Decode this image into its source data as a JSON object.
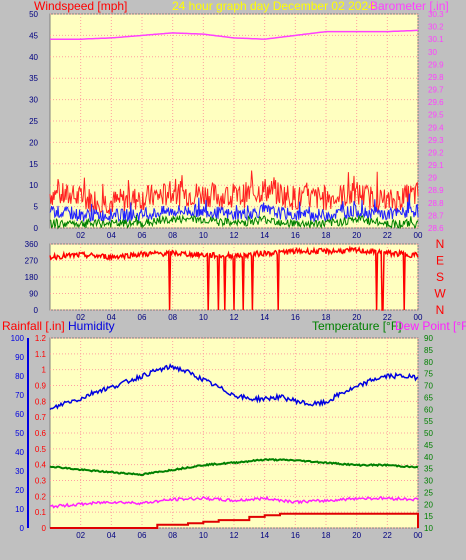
{
  "header": {
    "left_title": "Windspeed [mph]",
    "center_title": "24 hour graph day   December 02 2024",
    "right_title": "Barometer [.in]"
  },
  "bottom_header": {
    "rainfall": "Rainfall [.in]",
    "humidity": "Humidity",
    "temperature": "Temperature [°F]",
    "dewpoint": "Dew Point [°F]"
  },
  "colors": {
    "background": "#c0c0c0",
    "plot": "#ffffc0",
    "grid": "#ffa0a0",
    "wind_speed": "#ff2020",
    "wind_avg": "#2020ff",
    "wind_low": "#008000",
    "barometer": "#ff40ff",
    "direction": "#ff0000",
    "humidity": "#0000e0",
    "temperature": "#008000",
    "dewpoint": "#ff20ff",
    "rainfall": "#e00000",
    "title": "#ffff00",
    "left_title": "#ff0000"
  },
  "chart_data": [
    {
      "type": "line",
      "name": "wind-barometer",
      "x_ticks": [
        "02",
        "04",
        "06",
        "08",
        "10",
        "12",
        "14",
        "16",
        "18",
        "20",
        "22",
        "00"
      ],
      "left_axis": {
        "label": "Windspeed [mph]",
        "ticks": [
          0,
          5,
          10,
          15,
          20,
          25,
          30,
          35,
          40,
          45,
          50
        ],
        "range": [
          0,
          50
        ]
      },
      "right_axis": {
        "label": "Barometer [.in]",
        "ticks": [
          "28.6",
          "28.7",
          "28.8",
          "28.9",
          "29",
          "29.1",
          "29.2",
          "29.3",
          "29.4",
          "29.5",
          "29.6",
          "29.7",
          "29.8",
          "29.9",
          "30",
          "30.1",
          "30.2",
          "30.3"
        ],
        "range": [
          28.6,
          30.3
        ]
      },
      "barometer": {
        "x": [
          0,
          2,
          4,
          6,
          8,
          10,
          12,
          14,
          16,
          18,
          20,
          22,
          24
        ],
        "y": [
          30.1,
          30.1,
          30.11,
          30.13,
          30.15,
          30.14,
          30.11,
          30.1,
          30.13,
          30.16,
          30.16,
          30.16,
          30.17
        ]
      },
      "gust_band": {
        "x": [
          0,
          2,
          4,
          6,
          8,
          10,
          12,
          14,
          16,
          18,
          20,
          22,
          24
        ],
        "y": [
          8,
          7,
          6,
          7,
          8,
          8,
          7,
          9,
          7,
          7,
          8,
          6,
          8
        ]
      },
      "avg_band": {
        "x": [
          0,
          2,
          4,
          6,
          8,
          10,
          12,
          14,
          16,
          18,
          20,
          22,
          24
        ],
        "y": [
          4,
          3,
          3,
          3,
          4,
          4,
          3,
          4,
          3,
          3,
          4,
          3,
          4
        ]
      },
      "low_band": {
        "x": [
          0,
          2,
          4,
          6,
          8,
          10,
          12,
          14,
          16,
          18,
          20,
          22,
          24
        ],
        "y": [
          1,
          1,
          1,
          1,
          2,
          2,
          1,
          2,
          1,
          1,
          2,
          1,
          1
        ]
      }
    },
    {
      "type": "line",
      "name": "wind-direction",
      "x_ticks": [
        "02",
        "04",
        "06",
        "08",
        "10",
        "12",
        "14",
        "16",
        "18",
        "20",
        "22",
        "00"
      ],
      "left_axis": {
        "ticks": [
          0,
          90,
          180,
          270,
          360
        ],
        "range": [
          0,
          360
        ]
      },
      "right_axis": {
        "ticks": [
          "N",
          "W",
          "S",
          "E",
          "N"
        ]
      },
      "direction": {
        "x": [
          0,
          2,
          4,
          6,
          8,
          10,
          12,
          14,
          16,
          18,
          20,
          22,
          24
        ],
        "y": [
          290,
          300,
          290,
          305,
          310,
          300,
          295,
          310,
          320,
          320,
          325,
          310,
          300
        ]
      },
      "drops_to_zero_at": [
        7.8,
        10.3,
        11.0,
        11.4,
        12.0,
        12.6,
        13.2,
        14.9,
        21.3,
        21.7,
        23.1
      ]
    },
    {
      "type": "line",
      "name": "humidity-temperature",
      "x_ticks": [
        "02",
        "04",
        "06",
        "08",
        "10",
        "12",
        "14",
        "16",
        "18",
        "20",
        "22",
        "00"
      ],
      "left_axis_rain": {
        "label": "Rainfall [.in]",
        "ticks": [
          "0",
          "0.1",
          "0.2",
          "0.3",
          "0.4",
          "0.5",
          "0.6",
          "0.7",
          "0.8",
          "0.9",
          "1",
          "1.1",
          "1.2"
        ],
        "range": [
          0,
          1.2
        ]
      },
      "left_axis_humidity": {
        "label": "Humidity",
        "ticks": [
          0,
          10,
          20,
          30,
          40,
          50,
          60,
          70,
          80,
          90,
          100
        ],
        "range": [
          0,
          100
        ]
      },
      "right_axis": {
        "label": "Temperature [°F]",
        "ticks": [
          10,
          15,
          20,
          25,
          30,
          35,
          40,
          45,
          50,
          55,
          60,
          65,
          70,
          75,
          80,
          85,
          90
        ],
        "range": [
          10,
          90
        ]
      },
      "humidity": {
        "x": [
          0,
          1,
          2,
          3,
          4,
          5,
          6,
          7,
          8,
          9,
          10,
          11,
          12,
          13,
          14,
          15,
          16,
          17,
          18,
          19,
          20,
          21,
          22,
          23,
          24
        ],
        "y": [
          62,
          66,
          68,
          72,
          74,
          77,
          80,
          83,
          85,
          82,
          78,
          74,
          70,
          68,
          68,
          69,
          67,
          65,
          66,
          71,
          74,
          78,
          80,
          80,
          79
        ]
      },
      "temperature": {
        "x": [
          0,
          2,
          4,
          6,
          8,
          10,
          12,
          14,
          16,
          18,
          20,
          22,
          24
        ],
        "y": [
          36,
          34.5,
          33.5,
          32.5,
          34.5,
          36.5,
          37.5,
          38.8,
          38.5,
          37.5,
          36.5,
          36.5,
          35.5
        ]
      },
      "dewpoint": {
        "x": [
          0,
          2,
          4,
          6,
          8,
          10,
          12,
          14,
          16,
          18,
          20,
          22,
          24
        ],
        "y": [
          19,
          20,
          21,
          20.5,
          22,
          22.5,
          21.5,
          22.5,
          21,
          21.5,
          22.5,
          22.5,
          22
        ]
      },
      "rainfall": {
        "x": [
          0,
          6,
          7,
          8,
          9,
          10,
          11,
          12,
          13,
          14,
          15,
          16,
          17,
          18,
          19,
          20,
          21,
          22,
          23,
          24
        ],
        "y": [
          0,
          0,
          0.02,
          0.02,
          0.03,
          0.04,
          0.05,
          0.05,
          0.07,
          0.08,
          0.09,
          0.09,
          0.09,
          0.09,
          0.09,
          0.09,
          0.09,
          0.09,
          0.09,
          0.09
        ]
      }
    }
  ]
}
